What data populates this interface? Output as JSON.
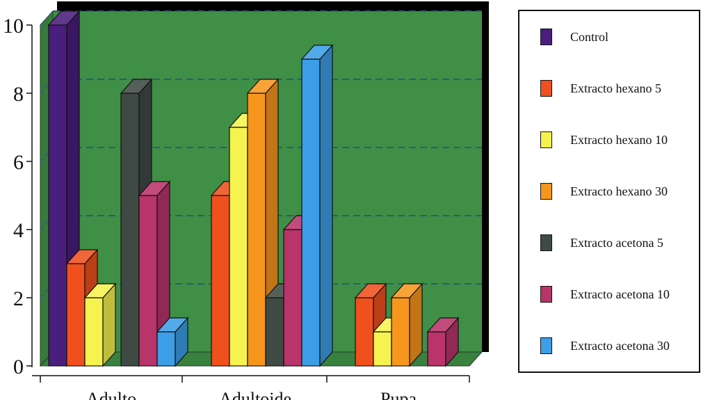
{
  "chart_data": {
    "type": "bar",
    "title": "",
    "xlabel": "",
    "ylabel": "",
    "ylim": [
      0,
      10
    ],
    "yticks": [
      0,
      2,
      4,
      6,
      8,
      10
    ],
    "grid": true,
    "legend_position": "right",
    "categories": [
      "Adulto",
      "Adultoide",
      "Pupa"
    ],
    "series": [
      {
        "name": "Control",
        "color": "#4a1e7e",
        "values": [
          10,
          0,
          0
        ]
      },
      {
        "name": "Extracto hexano 5",
        "color": "#f0501e",
        "values": [
          3,
          5,
          2
        ]
      },
      {
        "name": "Extracto hexano 10",
        "color": "#f6f24e",
        "values": [
          2,
          7,
          1
        ]
      },
      {
        "name": "Extracto hexano 30",
        "color": "#f7961c",
        "values": [
          0,
          8,
          2
        ]
      },
      {
        "name": "Extracto acetona 5",
        "color": "#3f4a45",
        "values": [
          8,
          2,
          0
        ]
      },
      {
        "name": "Extracto acetona 10",
        "color": "#b8346a",
        "values": [
          5,
          4,
          1
        ]
      },
      {
        "name": "Extracto acetona 30",
        "color": "#3c9ee6",
        "values": [
          1,
          9,
          0
        ]
      }
    ],
    "colors": {
      "plot_background": "#3f8f46",
      "grid": "#2f5a78"
    }
  }
}
